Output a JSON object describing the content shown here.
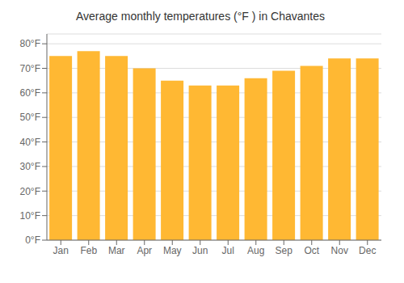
{
  "chart_data": {
    "type": "bar",
    "title": "Average monthly temperatures (°F ) in Chavantes",
    "categories": [
      "Jan",
      "Feb",
      "Mar",
      "Apr",
      "May",
      "Jun",
      "Jul",
      "Aug",
      "Sep",
      "Oct",
      "Nov",
      "Dec"
    ],
    "values": [
      75,
      77,
      75,
      70,
      65,
      63,
      63,
      66,
      69,
      71,
      74,
      74
    ],
    "color": "#FFB833",
    "ylim": [
      0,
      84
    ],
    "yticks": [
      {
        "value": 0,
        "label": "0°F"
      },
      {
        "value": 10,
        "label": "10°F"
      },
      {
        "value": 20,
        "label": "20°F"
      },
      {
        "value": 30,
        "label": "30°F"
      },
      {
        "value": 40,
        "label": "40°F"
      },
      {
        "value": 50,
        "label": "50°F"
      },
      {
        "value": 60,
        "label": "60°F"
      },
      {
        "value": 70,
        "label": "70°F"
      },
      {
        "value": 80,
        "label": "80°F"
      }
    ],
    "grid": true
  }
}
